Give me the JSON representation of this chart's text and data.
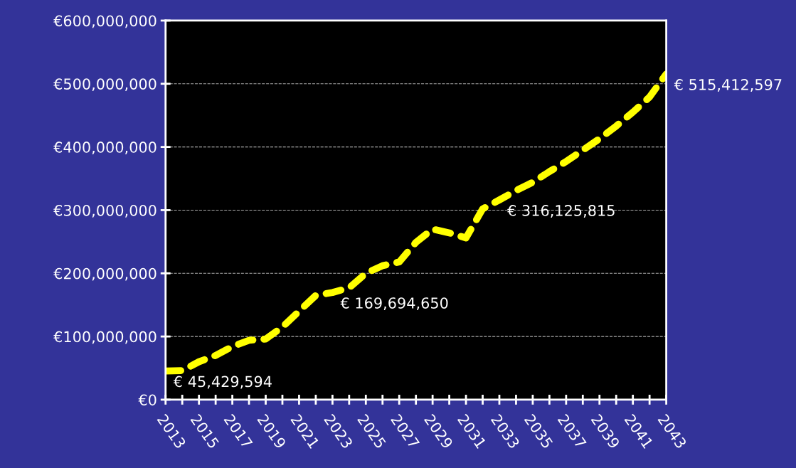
{
  "chart_data": {
    "type": "line",
    "x": [
      2013,
      2014,
      2015,
      2016,
      2017,
      2018,
      2019,
      2020,
      2021,
      2022,
      2023,
      2024,
      2025,
      2026,
      2027,
      2028,
      2029,
      2030,
      2031,
      2032,
      2033,
      2034,
      2035,
      2036,
      2037,
      2038,
      2039,
      2040,
      2041,
      2042,
      2043
    ],
    "series": [
      {
        "color": "#ffff00",
        "line_style": "dashed",
        "values": [
          45429594,
          46000000,
          60000000,
          70000000,
          84000000,
          94000000,
          96000000,
          115000000,
          140000000,
          165000000,
          169694650,
          177000000,
          200000000,
          212000000,
          218000000,
          249000000,
          270000000,
          264000000,
          256000000,
          302000000,
          316125815,
          331000000,
          344000000,
          361000000,
          377000000,
          395000000,
          413000000,
          433000000,
          455000000,
          479000000,
          515412597
        ],
        "value_labels": [
          "€ 45,429,594",
          null,
          null,
          null,
          null,
          null,
          null,
          null,
          null,
          null,
          "€ 169,694,650",
          null,
          null,
          null,
          null,
          null,
          null,
          null,
          null,
          null,
          "€ 316,125,815",
          null,
          null,
          null,
          null,
          null,
          null,
          null,
          null,
          null,
          "€ 515,412,597"
        ]
      }
    ],
    "xlim": [
      2013,
      2043
    ],
    "xticks": [
      2013,
      {
        "value": 2014,
        "label": null
      },
      2015,
      {
        "value": 2016,
        "label": null
      },
      2017,
      {
        "value": 2018,
        "label": null
      },
      2019,
      {
        "value": 2020,
        "label": null
      },
      2021,
      {
        "value": 2022,
        "label": null
      },
      2023,
      {
        "value": 2024,
        "label": null
      },
      2025,
      {
        "value": 2026,
        "label": null
      },
      2027,
      {
        "value": 2028,
        "label": null
      },
      2029,
      {
        "value": 2030,
        "label": null
      },
      2031,
      {
        "value": 2032,
        "label": null
      },
      2033,
      {
        "value": 2034,
        "label": null
      },
      2035,
      {
        "value": 2036,
        "label": null
      },
      2037,
      {
        "value": 2038,
        "label": null
      },
      2039,
      {
        "value": 2040,
        "label": null
      },
      2041,
      {
        "value": 2042,
        "label": null
      },
      2043
    ],
    "ylim": [
      0,
      600000000
    ],
    "yticks": [
      {
        "value": 0,
        "label": "€0"
      },
      {
        "value": 100000000,
        "label": "€100,000,000"
      },
      {
        "value": 200000000,
        "label": "€200,000,000"
      },
      {
        "value": 300000000,
        "label": "€300,000,000"
      },
      {
        "value": 400000000,
        "label": "€400,000,000"
      },
      {
        "value": 500000000,
        "label": "€500,000,000"
      },
      {
        "value": 600000000,
        "label": "€600,000,000"
      }
    ],
    "grid": "y",
    "marker": "none",
    "legend": false
  }
}
